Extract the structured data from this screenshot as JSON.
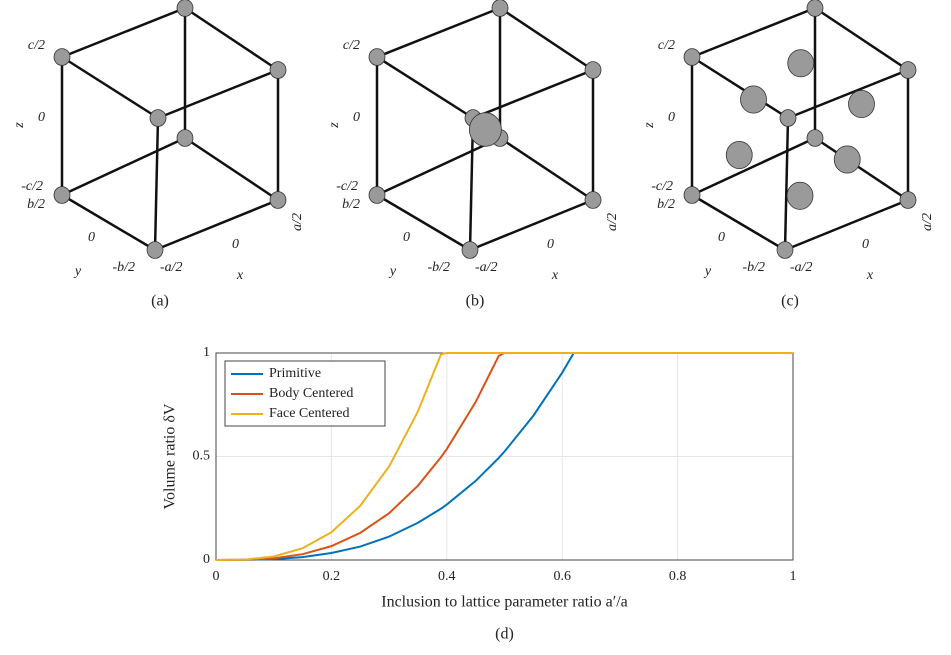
{
  "panels": [
    {
      "caption": "(a)",
      "z_label": "z",
      "z_ticks": [
        "c/2",
        "0",
        "-c/2"
      ],
      "y_label": "y",
      "y_ticks": [
        "b/2",
        "0",
        "-b/2"
      ],
      "x_label": "x",
      "x_ticks": [
        "-a/2",
        "0",
        "a/2"
      ]
    },
    {
      "caption": "(b)",
      "z_label": "z",
      "z_ticks": [
        "c/2",
        "0",
        "-c/2"
      ],
      "y_label": "y",
      "y_ticks": [
        "b/2",
        "0",
        "-b/2"
      ],
      "x_label": "x",
      "x_ticks": [
        "-a/2",
        "0",
        "a/2"
      ]
    },
    {
      "caption": "(c)",
      "z_label": "z",
      "z_ticks": [
        "c/2",
        "0",
        "-c/2"
      ],
      "y_label": "y",
      "y_ticks": [
        "b/2",
        "0",
        "-b/2"
      ],
      "x_label": "x",
      "x_ticks": [
        "-a/2",
        "0",
        "a/2"
      ]
    }
  ],
  "chart_data": {
    "type": "line",
    "caption": "(d)",
    "x_label": "Inclusion to lattice parameter ratio a′/a",
    "y_label": "Volume ratio δV",
    "x": [
      0,
      0.05,
      0.1,
      0.15,
      0.2,
      0.25,
      0.3,
      0.35,
      0.39,
      0.4,
      0.45,
      0.49,
      0.5,
      0.55,
      0.6,
      0.62,
      0.65,
      0.7,
      0.8,
      0.9,
      1
    ],
    "series": [
      {
        "name": "Primitive",
        "color": "#0072bd",
        "values": [
          0,
          0.001,
          0.004,
          0.014,
          0.034,
          0.065,
          0.113,
          0.18,
          0.248,
          0.268,
          0.382,
          0.493,
          0.524,
          0.697,
          0.905,
          1,
          1,
          1,
          1,
          1,
          1
        ]
      },
      {
        "name": "Body Centered",
        "color": "#d95319",
        "values": [
          0,
          0.001,
          0.008,
          0.028,
          0.067,
          0.131,
          0.226,
          0.359,
          0.497,
          0.536,
          0.763,
          0.986,
          1,
          1,
          1,
          1,
          1,
          1,
          1,
          1,
          1
        ]
      },
      {
        "name": "Face Centered",
        "color": "#edb120",
        "values": [
          0,
          0.002,
          0.017,
          0.057,
          0.134,
          0.262,
          0.452,
          0.718,
          0.994,
          1,
          1,
          1,
          1,
          1,
          1,
          1,
          1,
          1,
          1,
          1,
          1
        ]
      }
    ],
    "xlim": [
      0,
      1
    ],
    "ylim": [
      0,
      1
    ],
    "xticks": [
      0,
      0.2,
      0.4,
      0.6,
      0.8,
      1
    ],
    "yticks": [
      0,
      0.5,
      1
    ],
    "grid": true,
    "legend": "top-left"
  }
}
